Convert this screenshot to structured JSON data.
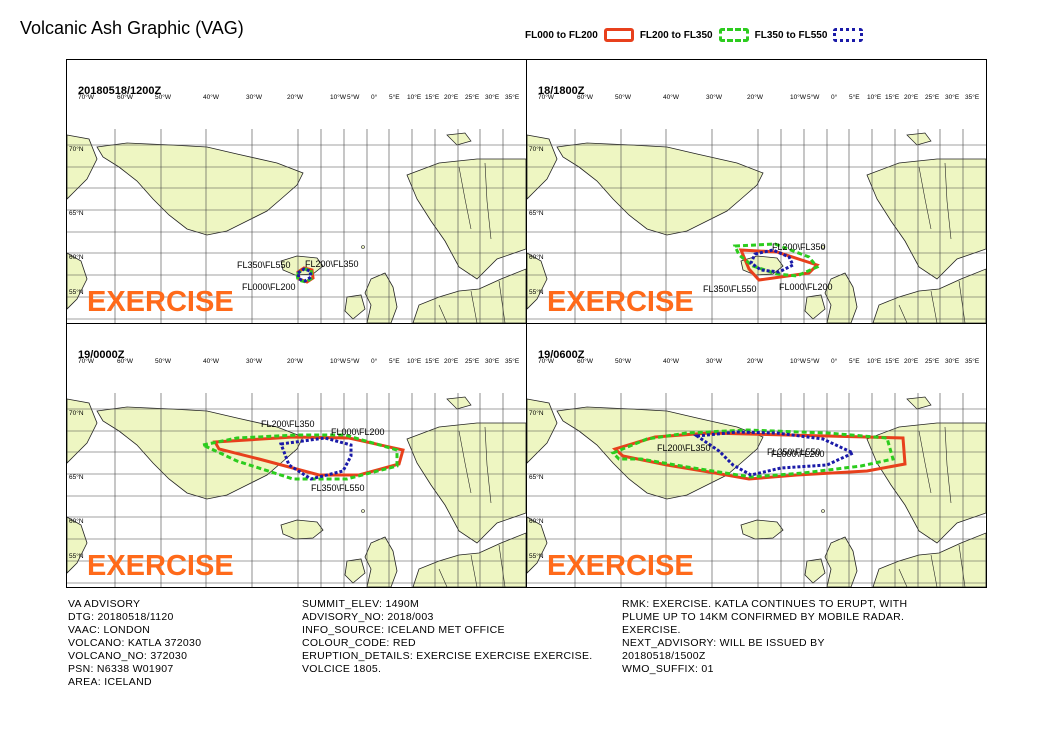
{
  "title": "Volcanic Ash Graphic (VAG)",
  "legend": [
    {
      "label": "FL000 to FL200",
      "color": "#e8401c",
      "style": "solid"
    },
    {
      "label": "FL200 to FL350",
      "color": "#2ccc1e",
      "style": "dashed"
    },
    {
      "label": "FL350 to FL550",
      "color": "#1a1aa8",
      "style": "dotted"
    }
  ],
  "lon_labels": [
    "70°W",
    "60°W",
    "50°W",
    "40°W",
    "30°W",
    "20°W",
    "10°W",
    "5°W",
    "0°",
    "5°E",
    "10°E",
    "15°E",
    "20°E",
    "25°E",
    "30°E",
    "35°E"
  ],
  "lat_labels": [
    "70°N",
    "65°N",
    "60°N",
    "55°N"
  ],
  "watermark": "EXERCISE",
  "panels": [
    {
      "time": "20180518/1200Z",
      "labels": [
        "FL350\\FL550",
        "FL200\\FL350",
        "FL000\\FL200"
      ]
    },
    {
      "time": "18/1800Z",
      "labels": [
        "FL200\\FL350",
        "FL350\\FL550",
        "FL000\\FL200"
      ]
    },
    {
      "time": "19/0000Z",
      "labels": [
        "FL200\\FL350",
        "FL000\\FL200",
        "FL350\\FL550"
      ]
    },
    {
      "time": "19/0600Z",
      "labels": [
        "FL200\\FL350",
        "FL350\\FL550",
        "FL000\\FL200"
      ]
    }
  ],
  "advisory": {
    "col1": [
      "VA ADVISORY",
      "DTG: 20180518/1120",
      "VAAC: LONDON",
      "VOLCANO: KATLA 372030",
      "VOLCANO_NO: 372030",
      "PSN: N6338 W01907",
      "AREA: ICELAND"
    ],
    "col2": [
      "SUMMIT_ELEV: 1490M",
      "ADVISORY_NO: 2018/003",
      "INFO_SOURCE: ICELAND MET OFFICE",
      "COLOUR_CODE: RED",
      "ERUPTION_DETAILS: EXERCISE EXERCISE EXERCISE.",
      "VOLCICE 1805."
    ],
    "col3": [
      "RMK: EXERCISE. KATLA CONTINUES TO ERUPT, WITH",
      "PLUME UP TO 14KM CONFIRMED BY MOBILE RADAR.",
      "EXERCISE.",
      "NEXT_ADVISORY: WILL BE ISSUED BY",
      "20180518/1500Z",
      "WMO_SUFFIX: 01"
    ]
  }
}
